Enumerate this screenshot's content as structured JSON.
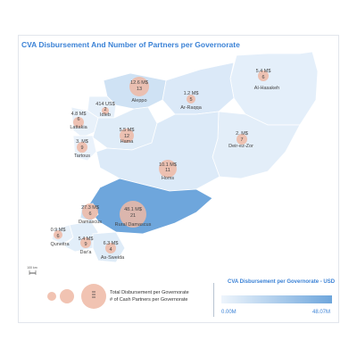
{
  "title": "CVA Disbursement And Number of Partners per Governorate",
  "legend": {
    "gradient_title": "CVA Disbursement per Governorate - USD",
    "gradient_min": "0.00M",
    "gradient_max": "48.07M",
    "bubble_label_1": "Total Disbursement per Governorate",
    "bubble_label_2": "# of Cash Partners per Governorate"
  },
  "colors": {
    "accent": "#3b82d6",
    "bubble": "#efb9a4",
    "region_dark": "#6ea6dc",
    "region_light": "#eaf3fb"
  },
  "governorates": [
    {
      "id": "aleppo",
      "name": "Aleppo",
      "amount": "12.6 M$",
      "partners": "13"
    },
    {
      "id": "idleb",
      "name": "Idleb",
      "amount": "414 US$",
      "partners": "2"
    },
    {
      "id": "lattakia",
      "name": "Lattakia",
      "amount": "4.8 M$",
      "partners": "6"
    },
    {
      "id": "tartous",
      "name": "Tartous",
      "amount": "3. M$",
      "partners": "9"
    },
    {
      "id": "hama",
      "name": "Hama",
      "amount": "5.5 M$",
      "partners": "12"
    },
    {
      "id": "homs",
      "name": "Homs",
      "amount": "10.1 M$",
      "partners": "11"
    },
    {
      "id": "ar-raqqa",
      "name": "Ar-Raqqa",
      "amount": "1.2 M$",
      "partners": "5"
    },
    {
      "id": "al-hasakeh",
      "name": "Al-Hasakeh",
      "amount": "5.4 M$",
      "partners": "6"
    },
    {
      "id": "deir-ez-zor",
      "name": "Deir-ez-Zor",
      "amount": "2. M$",
      "partners": "7"
    },
    {
      "id": "damascus",
      "name": "Damascus",
      "amount": "27.3 M$",
      "partners": "6"
    },
    {
      "id": "rural-damascus",
      "name": "Rural Damascus",
      "amount": "48.1 M$",
      "partners": "21"
    },
    {
      "id": "quneitra",
      "name": "Quneitra",
      "amount": "0.9 M$",
      "partners": "6"
    },
    {
      "id": "dara",
      "name": "Dar'a",
      "amount": "5.4 M$",
      "partners": "9"
    },
    {
      "id": "as-sweida",
      "name": "As-Sweida",
      "amount": "6.3 M$",
      "partners": "4"
    }
  ],
  "scale_bar": "100 km"
}
